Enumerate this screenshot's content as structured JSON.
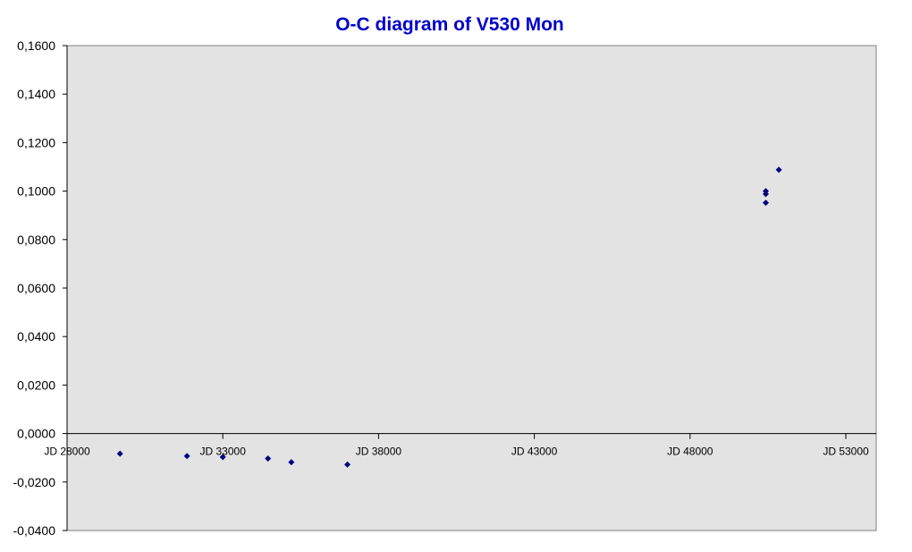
{
  "chart_data": {
    "type": "scatter",
    "title": "O-C diagram of V530 Mon",
    "xlabel": "",
    "ylabel": "",
    "xlim": [
      28000,
      54000
    ],
    "ylim": [
      -0.04,
      0.16
    ],
    "x_ticks": [
      {
        "value": 28000,
        "label": "JD 28000"
      },
      {
        "value": 33000,
        "label": "JD 33000"
      },
      {
        "value": 38000,
        "label": "JD 38000"
      },
      {
        "value": 43000,
        "label": "JD 43000"
      },
      {
        "value": 48000,
        "label": "JD 48000"
      },
      {
        "value": 53000,
        "label": "JD 53000"
      }
    ],
    "y_ticks": [
      {
        "value": 0.16,
        "label": "0,1600"
      },
      {
        "value": 0.14,
        "label": "0,1400"
      },
      {
        "value": 0.12,
        "label": "0,1200"
      },
      {
        "value": 0.1,
        "label": "0,1000"
      },
      {
        "value": 0.08,
        "label": "0,0800"
      },
      {
        "value": 0.06,
        "label": "0,0600"
      },
      {
        "value": 0.04,
        "label": "0,0400"
      },
      {
        "value": 0.02,
        "label": "0,0200"
      },
      {
        "value": 0.0,
        "label": "0,0000"
      },
      {
        "value": -0.02,
        "label": "-0,0200"
      },
      {
        "value": -0.04,
        "label": "-0,0400"
      }
    ],
    "grid": false,
    "legend": "none",
    "series": [
      {
        "marker": "diamond",
        "color": "#000080",
        "points": [
          {
            "x": 29700,
            "y": -0.0083
          },
          {
            "x": 31850,
            "y": -0.0093
          },
          {
            "x": 33000,
            "y": -0.0097
          },
          {
            "x": 34450,
            "y": -0.0103
          },
          {
            "x": 35200,
            "y": -0.0118
          },
          {
            "x": 37000,
            "y": -0.0128
          },
          {
            "x": 50430,
            "y": 0.1
          },
          {
            "x": 50430,
            "y": 0.0988
          },
          {
            "x": 50430,
            "y": 0.0952
          },
          {
            "x": 50850,
            "y": 0.1088
          }
        ]
      }
    ],
    "colors": {
      "title": "#0000cc",
      "plot_background": "#e3e3e3",
      "axis": "#000000",
      "marker": "#000080"
    }
  }
}
